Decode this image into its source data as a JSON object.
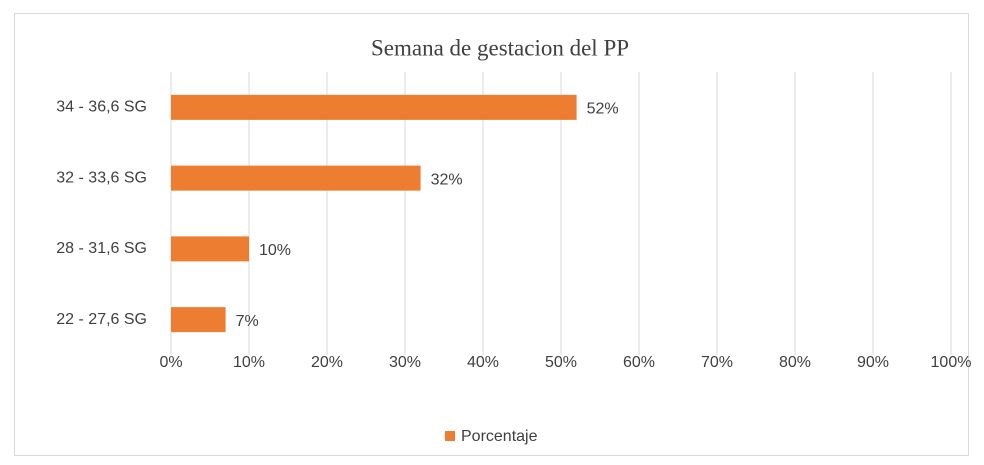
{
  "chart_data": {
    "type": "hbar",
    "title": "Semana de gestacion del PP",
    "categories": [
      "34 - 36,6 SG",
      "32 - 33,6 SG",
      "28 - 31,6 SG",
      "22 - 27,6 SG"
    ],
    "series": [
      {
        "name": "Porcentaje",
        "color": "#ed7d31",
        "values": [
          52,
          32,
          10,
          7
        ],
        "value_labels": [
          "52%",
          "32%",
          "10%",
          "7%"
        ]
      }
    ],
    "xlim": [
      0,
      100
    ],
    "xticks": [
      {
        "value": 0,
        "label": "0%"
      },
      {
        "value": 10,
        "label": "10%"
      },
      {
        "value": 20,
        "label": "20%"
      },
      {
        "value": 30,
        "label": "30%"
      },
      {
        "value": 40,
        "label": "40%"
      },
      {
        "value": 50,
        "label": "50%"
      },
      {
        "value": 60,
        "label": "60%"
      },
      {
        "value": 70,
        "label": "70%"
      },
      {
        "value": 80,
        "label": "80%"
      },
      {
        "value": 90,
        "label": "90%"
      },
      {
        "value": 100,
        "label": "100%"
      }
    ],
    "grid": true,
    "legend": "bottom"
  }
}
